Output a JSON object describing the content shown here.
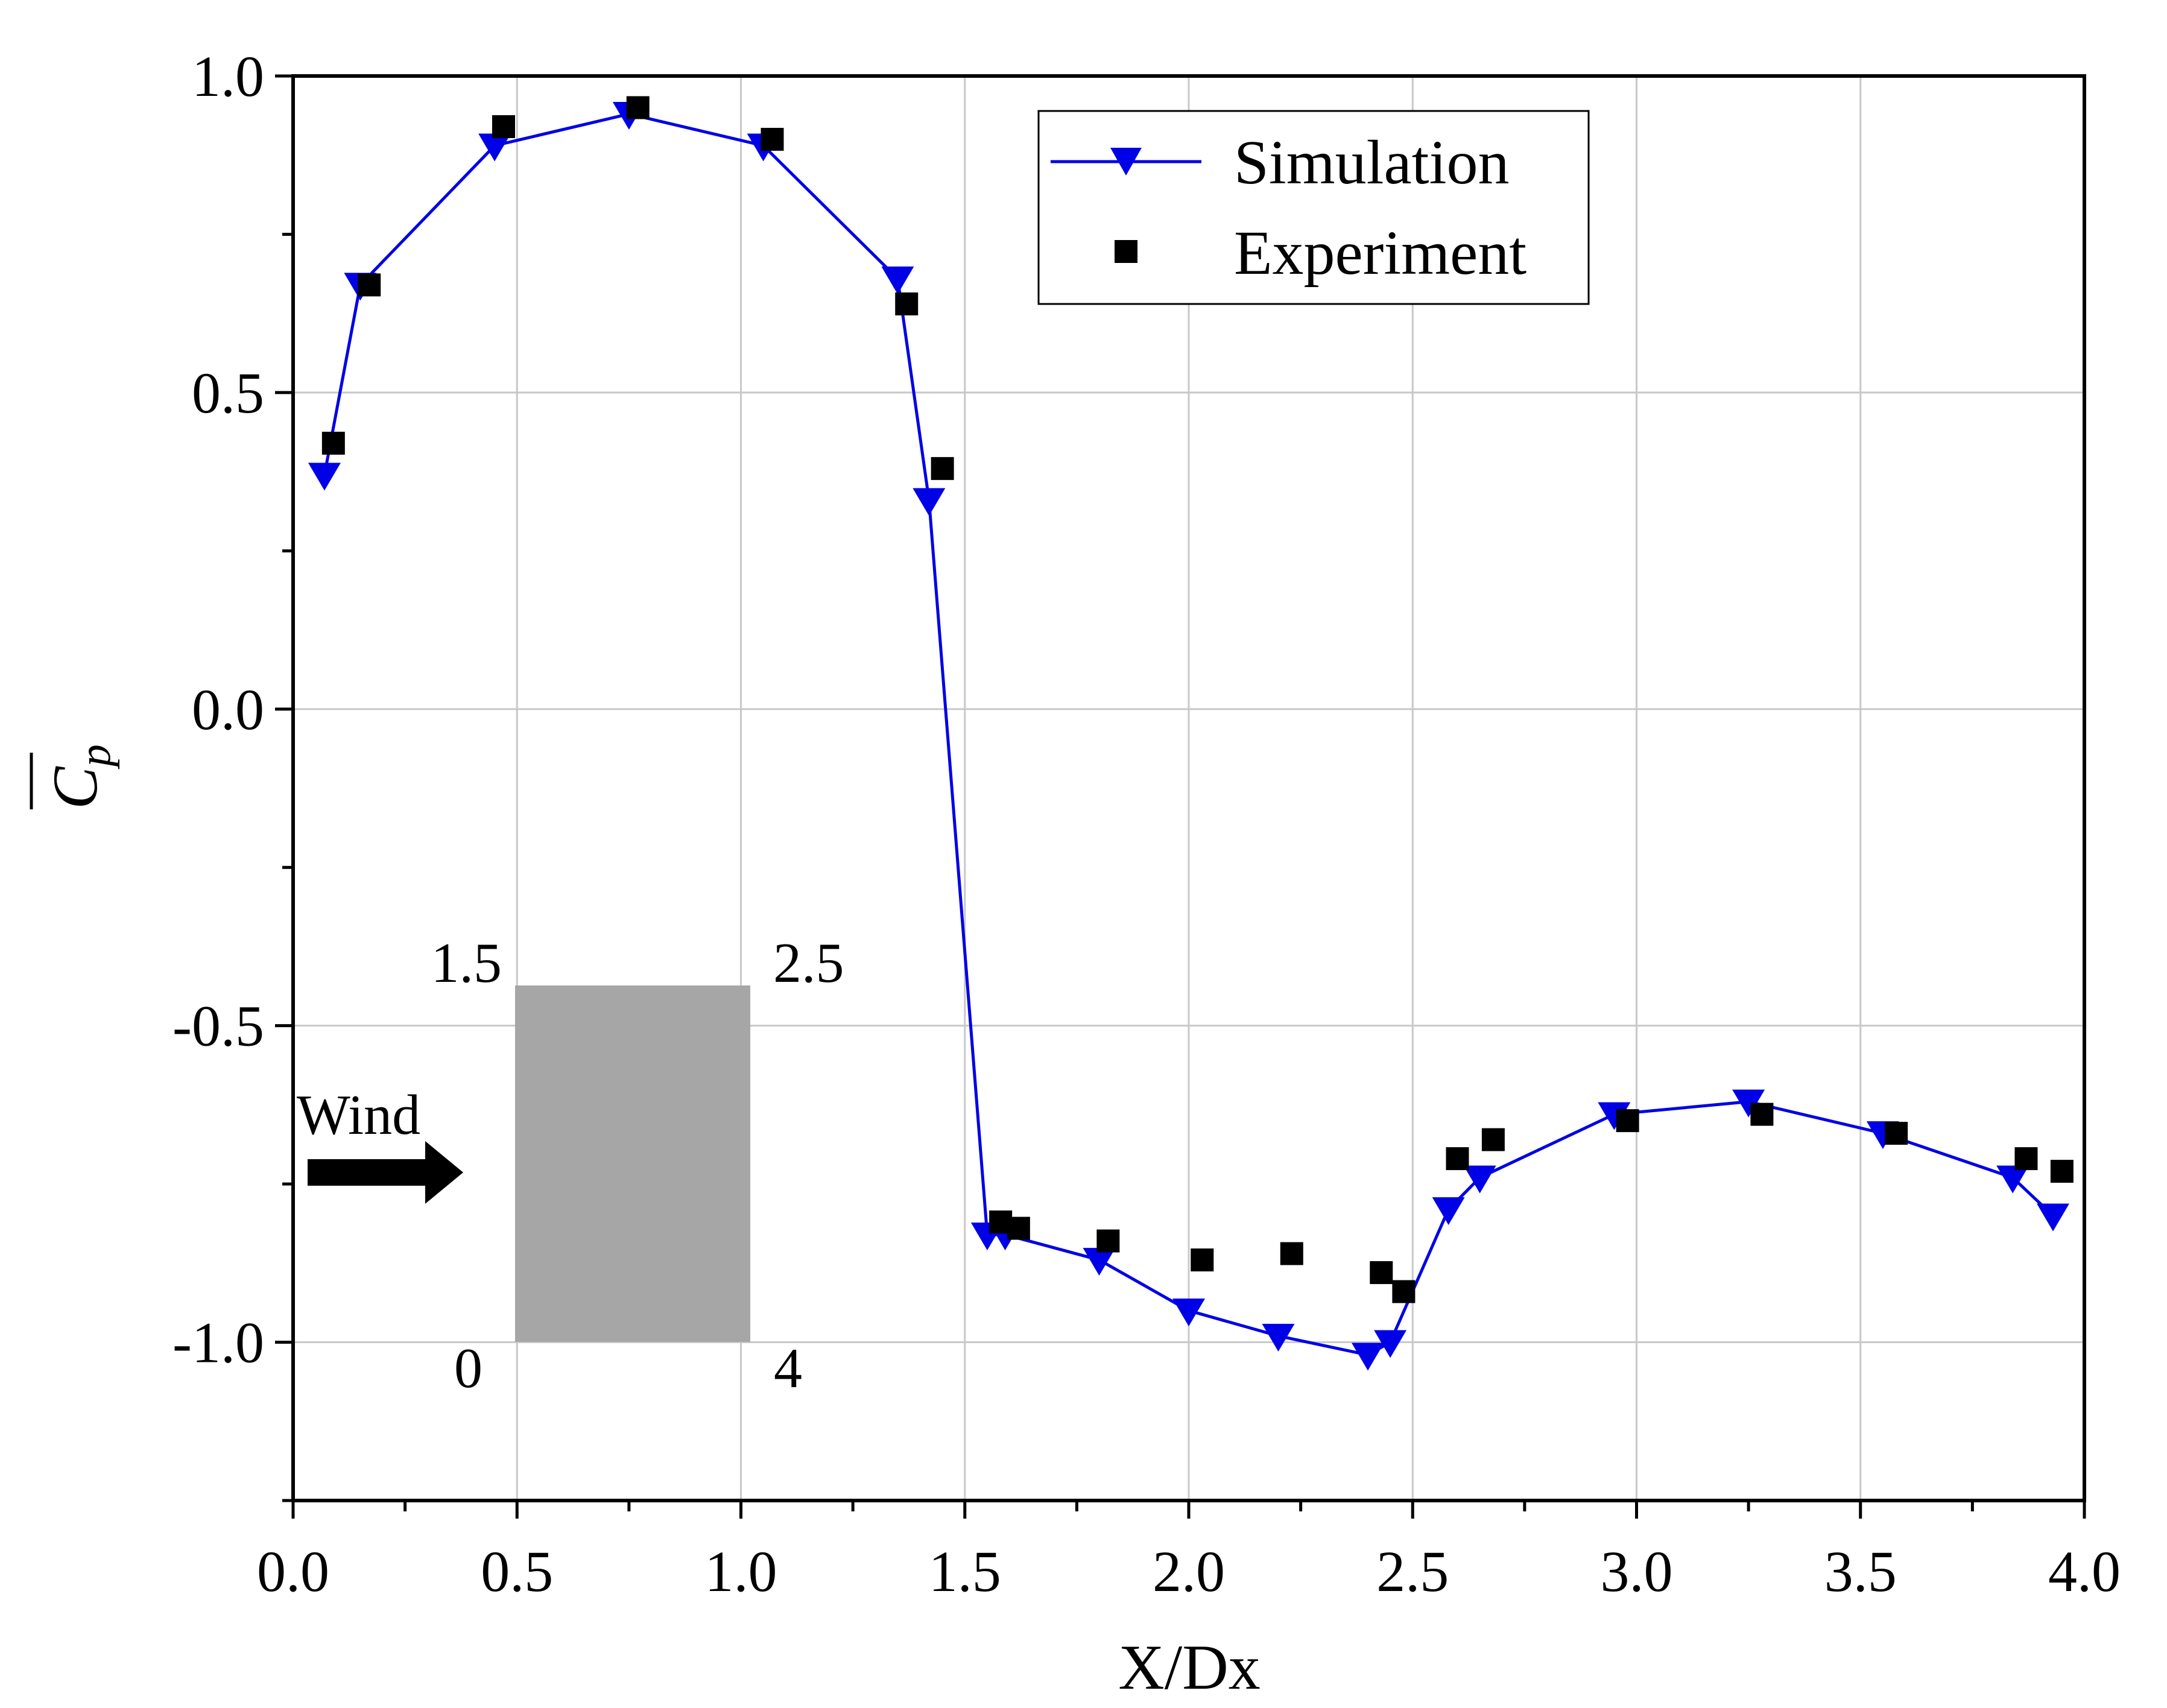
{
  "chart_data": {
    "type": "line",
    "title": "",
    "xlabel": "X/Dx",
    "ylabel": "C",
    "ylabel_subscript": "p",
    "xlim": [
      0.0,
      4.0
    ],
    "ylim": [
      -1.25,
      1.0
    ],
    "grid": true,
    "xticks": [
      0.0,
      0.5,
      1.0,
      1.5,
      2.0,
      2.5,
      3.0,
      3.5,
      4.0
    ],
    "xtick_labels": [
      "0.0",
      "0.5",
      "1.0",
      "1.5",
      "2.0",
      "2.5",
      "3.0",
      "3.5",
      "4.0"
    ],
    "yticks": [
      1.0,
      0.5,
      0.0,
      -0.5,
      -1.0
    ],
    "ytick_labels": [
      "1.0",
      "0.5",
      "0.0",
      "-0.5",
      "-1.0"
    ],
    "legend_position": "top-right",
    "series": [
      {
        "name": "Simulation",
        "style": "line-triangle-down",
        "color": "#0000e6",
        "x": [
          0.07,
          0.15,
          0.45,
          0.75,
          1.05,
          1.35,
          1.42,
          1.55,
          1.59,
          1.8,
          2.0,
          2.2,
          2.4,
          2.45,
          2.58,
          2.65,
          2.95,
          3.25,
          3.55,
          3.84,
          3.93
        ],
        "y": [
          0.37,
          0.67,
          0.89,
          0.94,
          0.89,
          0.68,
          0.33,
          -0.83,
          -0.83,
          -0.87,
          -0.95,
          -0.99,
          -1.02,
          -1.0,
          -0.79,
          -0.74,
          -0.64,
          -0.62,
          -0.67,
          -0.74,
          -0.8
        ]
      },
      {
        "name": "Experiment",
        "style": "square",
        "color": "#000000",
        "x": [
          0.09,
          0.17,
          0.47,
          0.77,
          1.07,
          1.37,
          1.45,
          1.58,
          1.62,
          1.82,
          2.03,
          2.23,
          2.43,
          2.48,
          2.6,
          2.68,
          2.98,
          3.28,
          3.58,
          3.87,
          3.95
        ],
        "y": [
          0.42,
          0.67,
          0.92,
          0.95,
          0.9,
          0.64,
          0.38,
          -0.81,
          -0.82,
          -0.84,
          -0.87,
          -0.86,
          -0.89,
          -0.92,
          -0.71,
          -0.68,
          -0.65,
          -0.64,
          -0.67,
          -0.71,
          -0.73
        ]
      }
    ],
    "inset": {
      "wind_label": "Wind",
      "corner_labels": {
        "top_left": "1.5",
        "top_right": "2.5",
        "bottom_left": "0",
        "bottom_right": "4"
      },
      "block_color": "#a6a6a6"
    }
  }
}
